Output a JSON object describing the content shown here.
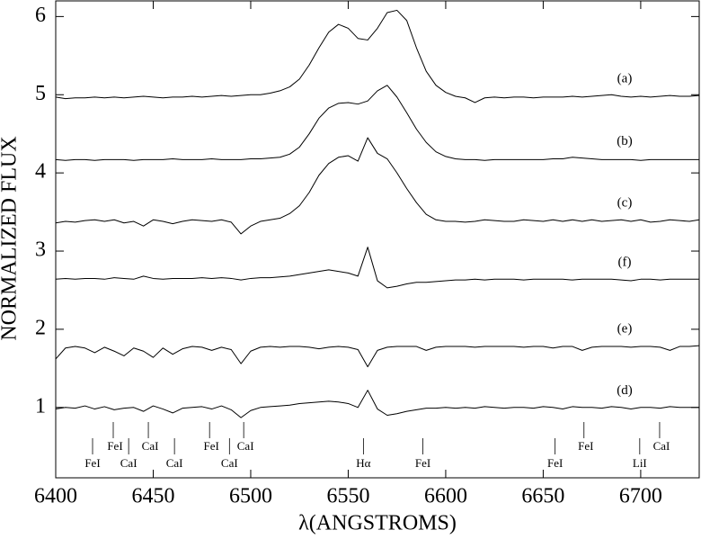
{
  "chart_data": {
    "type": "line",
    "x_label": "λ(ANGSTROMS)",
    "y_label": "NORMALIZED FLUX",
    "xlim": [
      6400,
      6730
    ],
    "ylim": [
      0.1,
      6.2
    ],
    "xticks": [
      6400,
      6450,
      6500,
      6550,
      6600,
      6650,
      6700
    ],
    "yticks": [
      1,
      2,
      3,
      4,
      5,
      6
    ],
    "grid": false,
    "x": [
      6400,
      6405,
      6410,
      6415,
      6420,
      6425,
      6430,
      6435,
      6440,
      6445,
      6450,
      6455,
      6460,
      6465,
      6470,
      6475,
      6480,
      6485,
      6490,
      6495,
      6500,
      6505,
      6510,
      6515,
      6520,
      6525,
      6530,
      6535,
      6540,
      6545,
      6550,
      6555,
      6560,
      6565,
      6570,
      6575,
      6580,
      6585,
      6590,
      6595,
      6600,
      6605,
      6610,
      6615,
      6620,
      6625,
      6630,
      6635,
      6640,
      6645,
      6650,
      6655,
      6660,
      6665,
      6670,
      6675,
      6680,
      6685,
      6690,
      6695,
      6700,
      6705,
      6710,
      6715,
      6720,
      6725,
      6730
    ],
    "series": [
      {
        "name": "(a)",
        "color": "#000000",
        "values": [
          4.97,
          4.95,
          4.96,
          4.96,
          4.97,
          4.96,
          4.97,
          4.96,
          4.97,
          4.98,
          4.97,
          4.96,
          4.97,
          4.97,
          4.98,
          4.97,
          4.98,
          4.99,
          4.98,
          4.99,
          5.0,
          5.0,
          5.02,
          5.05,
          5.1,
          5.2,
          5.38,
          5.6,
          5.8,
          5.9,
          5.85,
          5.72,
          5.7,
          5.85,
          6.05,
          6.08,
          5.95,
          5.6,
          5.3,
          5.12,
          5.03,
          4.98,
          4.96,
          4.9,
          4.96,
          4.97,
          4.96,
          4.97,
          4.97,
          4.96,
          4.97,
          4.97,
          4.97,
          4.98,
          4.97,
          4.98,
          4.99,
          5.0,
          4.98,
          4.97,
          4.98,
          4.97,
          4.98,
          4.99,
          4.98,
          4.98,
          4.99
        ]
      },
      {
        "name": "(b)",
        "color": "#000000",
        "values": [
          4.17,
          4.16,
          4.17,
          4.17,
          4.16,
          4.17,
          4.17,
          4.17,
          4.16,
          4.17,
          4.17,
          4.17,
          4.18,
          4.17,
          4.17,
          4.17,
          4.18,
          4.17,
          4.17,
          4.17,
          4.18,
          4.18,
          4.19,
          4.2,
          4.24,
          4.33,
          4.5,
          4.7,
          4.83,
          4.89,
          4.9,
          4.88,
          4.92,
          5.05,
          5.12,
          4.97,
          4.77,
          4.56,
          4.39,
          4.27,
          4.21,
          4.18,
          4.17,
          4.17,
          4.16,
          4.17,
          4.17,
          4.17,
          4.17,
          4.17,
          4.17,
          4.18,
          4.18,
          4.2,
          4.19,
          4.18,
          4.17,
          4.17,
          4.17,
          4.17,
          4.16,
          4.17,
          4.17,
          4.17,
          4.17,
          4.17,
          4.17
        ]
      },
      {
        "name": "(c)",
        "color": "#000000",
        "values": [
          3.36,
          3.38,
          3.37,
          3.39,
          3.4,
          3.38,
          3.4,
          3.36,
          3.38,
          3.32,
          3.4,
          3.38,
          3.35,
          3.38,
          3.4,
          3.39,
          3.38,
          3.4,
          3.37,
          3.22,
          3.32,
          3.38,
          3.4,
          3.42,
          3.48,
          3.58,
          3.75,
          3.97,
          4.12,
          4.2,
          4.22,
          4.15,
          4.45,
          4.25,
          4.18,
          4.0,
          3.8,
          3.62,
          3.47,
          3.4,
          3.38,
          3.38,
          3.37,
          3.38,
          3.4,
          3.39,
          3.38,
          3.38,
          3.4,
          3.39,
          3.38,
          3.4,
          3.38,
          3.4,
          3.38,
          3.4,
          3.38,
          3.39,
          3.4,
          3.38,
          3.4,
          3.37,
          3.38,
          3.4,
          3.39,
          3.38,
          3.4
        ]
      },
      {
        "name": "(f)",
        "color": "#000000",
        "values": [
          2.64,
          2.65,
          2.64,
          2.65,
          2.65,
          2.64,
          2.66,
          2.65,
          2.64,
          2.68,
          2.65,
          2.64,
          2.65,
          2.65,
          2.65,
          2.66,
          2.65,
          2.66,
          2.65,
          2.63,
          2.65,
          2.66,
          2.66,
          2.67,
          2.68,
          2.7,
          2.72,
          2.74,
          2.76,
          2.74,
          2.72,
          2.68,
          3.05,
          2.62,
          2.53,
          2.55,
          2.58,
          2.6,
          2.6,
          2.61,
          2.62,
          2.63,
          2.63,
          2.64,
          2.63,
          2.64,
          2.64,
          2.64,
          2.63,
          2.64,
          2.64,
          2.64,
          2.64,
          2.63,
          2.64,
          2.64,
          2.64,
          2.64,
          2.63,
          2.62,
          2.64,
          2.64,
          2.63,
          2.64,
          2.64,
          2.64,
          2.64
        ]
      },
      {
        "name": "(e)",
        "color": "#000000",
        "values": [
          1.62,
          1.76,
          1.78,
          1.76,
          1.7,
          1.77,
          1.72,
          1.66,
          1.76,
          1.72,
          1.64,
          1.76,
          1.68,
          1.75,
          1.78,
          1.77,
          1.73,
          1.77,
          1.74,
          1.56,
          1.72,
          1.77,
          1.78,
          1.77,
          1.78,
          1.78,
          1.77,
          1.75,
          1.77,
          1.78,
          1.77,
          1.74,
          1.52,
          1.73,
          1.77,
          1.78,
          1.78,
          1.78,
          1.73,
          1.77,
          1.78,
          1.78,
          1.78,
          1.77,
          1.78,
          1.78,
          1.78,
          1.78,
          1.77,
          1.78,
          1.78,
          1.76,
          1.78,
          1.78,
          1.73,
          1.77,
          1.78,
          1.78,
          1.78,
          1.77,
          1.78,
          1.78,
          1.77,
          1.73,
          1.78,
          1.78,
          1.79
        ]
      },
      {
        "name": "(d)",
        "color": "#000000",
        "values": [
          0.98,
          1.0,
          0.99,
          1.02,
          0.98,
          1.01,
          0.97,
          0.99,
          1.0,
          0.95,
          1.02,
          0.98,
          0.93,
          0.99,
          1.0,
          1.01,
          0.98,
          1.02,
          0.97,
          0.87,
          0.96,
          1.0,
          1.01,
          1.02,
          1.03,
          1.05,
          1.06,
          1.07,
          1.08,
          1.07,
          1.05,
          1.0,
          1.22,
          0.98,
          0.9,
          0.92,
          0.95,
          0.97,
          0.99,
          0.99,
          1.0,
          0.99,
          1.0,
          0.99,
          1.01,
          1.0,
          0.99,
          1.0,
          1.0,
          0.99,
          1.01,
          1.0,
          0.98,
          1.01,
          1.0,
          1.0,
          0.99,
          1.01,
          1.0,
          0.98,
          1.0,
          1.0,
          0.99,
          1.01,
          1.0,
          1.0,
          1.0
        ]
      }
    ],
    "spectral_lines": [
      {
        "label": "FeI",
        "x": 6418.9
      },
      {
        "label": "FeI",
        "x": 6429.5
      },
      {
        "label": "CaI",
        "x": 6437.4
      },
      {
        "label": "CaI",
        "x": 6447.5
      },
      {
        "label": "CaI",
        "x": 6460.9
      },
      {
        "label": "FeI",
        "x": 6478.9
      },
      {
        "label": "CaI",
        "x": 6489.1
      },
      {
        "label": "CaI",
        "x": 6496.4
      },
      {
        "label": "Hα",
        "x": 6557.8
      },
      {
        "label": "FeI",
        "x": 6588.3
      },
      {
        "label": "FeI",
        "x": 6656.1
      },
      {
        "label": "FeI",
        "x": 6670.9
      },
      {
        "label": "LiI",
        "x": 6699.5
      },
      {
        "label": "CaI",
        "x": 6709.7
      }
    ]
  }
}
